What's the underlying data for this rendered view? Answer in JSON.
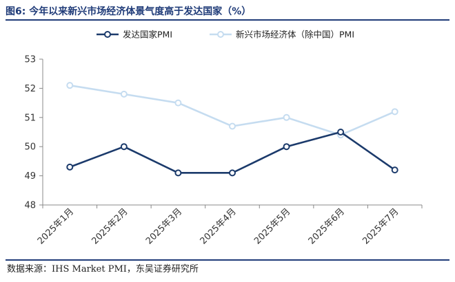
{
  "figure": {
    "label": "图6:",
    "title": "今年以来新兴市场经济体景气度高于发达国家（%）",
    "source": "数据来源：IHS Market PMI，东吴证券研究所"
  },
  "chart_data": {
    "type": "line",
    "title": "今年以来新兴市场经济体景气度高于发达国家（%）",
    "xlabel": "",
    "ylabel": "",
    "ylim": [
      48,
      53
    ],
    "yticks": [
      48,
      49,
      50,
      51,
      52,
      53
    ],
    "grid": false,
    "legend_position": "top",
    "categories": [
      "2025年1月",
      "2025年2月",
      "2025年3月",
      "2025年4月",
      "2025年5月",
      "2025年6月",
      "2025年7月"
    ],
    "series": [
      {
        "name": "发达国家PMI",
        "color": "#1b3a6b",
        "values": [
          49.3,
          50.0,
          49.1,
          49.1,
          50.0,
          50.5,
          49.2
        ]
      },
      {
        "name": "新兴市场经济体（除中国）PMI",
        "color": "#c5dcf0",
        "values": [
          52.1,
          51.8,
          51.5,
          50.7,
          51.0,
          50.4,
          51.2
        ]
      }
    ]
  }
}
